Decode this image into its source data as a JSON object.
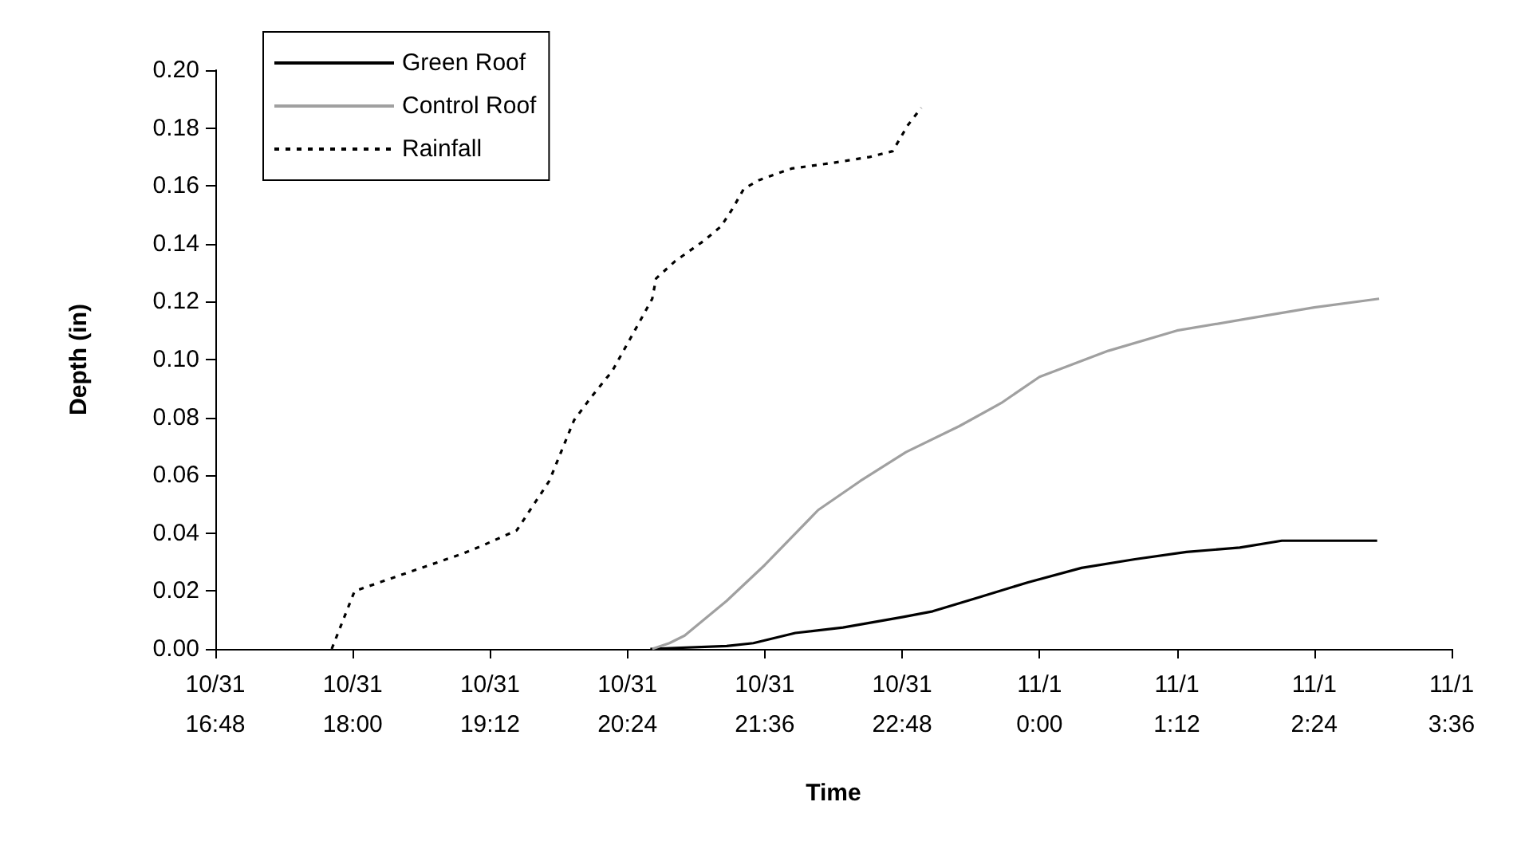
{
  "chart_data": {
    "type": "line",
    "xlabel": "Time",
    "ylabel": "Depth (in)",
    "xlim": [
      "--10-31T16:48",
      "--11-01T03:36"
    ],
    "xticks": [
      {
        "value": "--10-31T16:48",
        "label": "10/31\n16:48"
      },
      {
        "value": "--10-31T18:00",
        "label": "10/31\n18:00"
      },
      {
        "value": "--10-31T19:12",
        "label": "10/31\n19:12"
      },
      {
        "value": "--10-31T20:24",
        "label": "10/31\n20:24"
      },
      {
        "value": "--10-31T21:36",
        "label": "10/31\n21:36"
      },
      {
        "value": "--10-31T22:48",
        "label": "10/31\n22:48"
      },
      {
        "value": "--11-01T00:00",
        "label": "11/1\n0:00"
      },
      {
        "value": "--11-01T01:12",
        "label": "11/1\n1:12"
      },
      {
        "value": "--11-01T02:24",
        "label": "11/1\n2:24"
      },
      {
        "value": "--11-01T03:36",
        "label": "11/1\n3:36"
      }
    ],
    "ylim": [
      0,
      0.2
    ],
    "yticks": [
      {
        "value": 0,
        "label": "0.00"
      },
      {
        "value": 0.02,
        "label": "0.02"
      },
      {
        "value": 0.04,
        "label": "0.04"
      },
      {
        "value": 0.06,
        "label": "0.06"
      },
      {
        "value": 0.08,
        "label": "0.08"
      },
      {
        "value": 0.1,
        "label": "0.10"
      },
      {
        "value": 0.12,
        "label": "0.12"
      },
      {
        "value": 0.14,
        "label": "0.14"
      },
      {
        "value": 0.16,
        "label": "0.16"
      },
      {
        "value": 0.18,
        "label": "0.18"
      },
      {
        "value": 0.2,
        "label": "0.20"
      }
    ],
    "grid": false,
    "legend": "top left",
    "marker": "none",
    "series": [
      {
        "name": "Green Roof",
        "color": "#000000",
        "line_style": "solid",
        "x": [
          "--10-31T20:36",
          "--10-31T21:16",
          "--10-31T21:30",
          "--10-31T21:52",
          "--10-31T22:17",
          "--10-31T22:48",
          "--10-31T23:04",
          "--10-31T23:29",
          "--10-31T23:54",
          "--11-01T00:22",
          "--11-01T00:50",
          "--11-01T01:17",
          "--11-01T01:45",
          "--11-01T02:07",
          "--11-01T02:57"
        ],
        "values": [
          0,
          0.001,
          0.002,
          0.0055,
          0.0074,
          0.011,
          0.013,
          0.018,
          0.023,
          0.028,
          0.031,
          0.0335,
          0.035,
          0.0374,
          0.0374
        ]
      },
      {
        "name": "Control Roof",
        "color": "#a0a0a0",
        "line_style": "solid",
        "x": [
          "--10-31T20:37",
          "--10-31T20:46",
          "--10-31T20:54",
          "--10-31T21:16",
          "--10-31T21:36",
          "--10-31T22:04",
          "--10-31T22:26",
          "--10-31T22:50",
          "--10-31T23:18",
          "--10-31T23:40",
          "--11-01T00:00",
          "--11-01T00:36",
          "--11-01T01:12",
          "--11-01T01:48",
          "--11-01T02:24",
          "--11-01T02:58"
        ],
        "values": [
          0,
          0.002,
          0.0046,
          0.0166,
          0.029,
          0.048,
          0.058,
          0.068,
          0.077,
          0.085,
          0.094,
          0.103,
          0.11,
          0.114,
          0.118,
          0.121
        ]
      },
      {
        "name": "Rainfall",
        "color": "#000000",
        "line_style": "dashed",
        "x": [
          "--10-31T17:49",
          "--10-31T18:01",
          "--10-31T18:36",
          "--10-31T18:58",
          "--10-31T19:09",
          "--10-31T19:26",
          "--10-31T19:43",
          "--10-31T19:56",
          "--10-31T20:05",
          "--10-31T20:16",
          "--10-31T20:27",
          "--10-31T20:37",
          "--10-31T20:39",
          "--10-31T20:49",
          "--10-31T21:04",
          "--10-31T21:13",
          "--10-31T21:19",
          "--10-31T21:25",
          "--10-31T21:33",
          "--10-31T21:50",
          "--10-31T22:12",
          "--10-31T22:31",
          "--10-31T22:43",
          "--10-31T22:51",
          "--10-31T22:58"
        ],
        "values": [
          0,
          0.02,
          0.028,
          0.033,
          0.036,
          0.041,
          0.058,
          0.079,
          0.087,
          0.096,
          0.109,
          0.121,
          0.128,
          0.134,
          0.141,
          0.146,
          0.152,
          0.159,
          0.162,
          0.166,
          0.168,
          0.17,
          0.172,
          0.181,
          0.187
        ]
      }
    ]
  }
}
